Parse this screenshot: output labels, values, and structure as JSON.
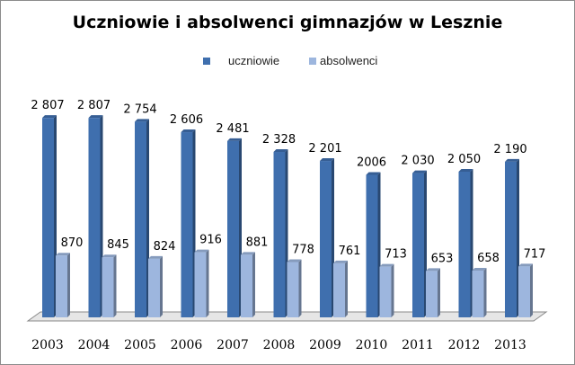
{
  "chart_data": {
    "type": "bar",
    "title": "Uczniowie i absolwenci gimnazjów w Lesznie",
    "categories": [
      "2003",
      "2004",
      "2005",
      "2006",
      "2007",
      "2008",
      "2009",
      "2010",
      "2011",
      "2012",
      "2013"
    ],
    "series": [
      {
        "name": "uczniowie",
        "color": "#3f6fae",
        "values": [
          2807,
          2807,
          2754,
          2606,
          2481,
          2328,
          2201,
          2006,
          2030,
          2050,
          2190
        ],
        "labels": [
          "2 807",
          "2 807",
          "2 754",
          "2 606",
          "2 481",
          "2 328",
          "2 201",
          "2006",
          "2 030",
          "2 050",
          "2 190"
        ]
      },
      {
        "name": "absolwenci",
        "color": "#9db6de",
        "values": [
          870,
          845,
          824,
          916,
          881,
          778,
          761,
          713,
          653,
          658,
          717
        ],
        "labels": [
          "870",
          "845",
          "824",
          "916",
          "881",
          "778",
          "761",
          "713",
          "653",
          "658",
          "717"
        ]
      }
    ],
    "ylim": [
      0,
      3100
    ],
    "legend_position": "top-center",
    "grid": false,
    "style": "3d-column"
  }
}
